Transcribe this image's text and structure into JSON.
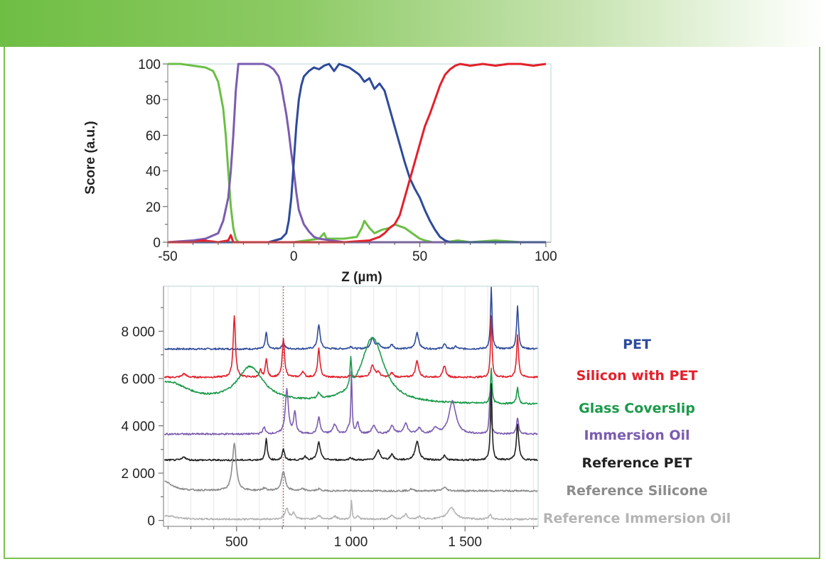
{
  "colors": {
    "header_green": "#6fbe44",
    "frame_green": "#7cc24e",
    "pet": "#2e4b9b",
    "silicon": "#e3202b",
    "glass": "#1a9a4a",
    "glass_top": "#6cbf45",
    "oil": "#7b5cb0",
    "ref_pet": "#222222",
    "ref_silicone": "#8c8c8c",
    "ref_oil": "#b4b4b4",
    "marker": "#c0392b"
  },
  "chart_data": [
    {
      "type": "line",
      "title": "",
      "xlabel": "Z (µm)",
      "ylabel": "Score (a.u.)",
      "xlim": [
        -50,
        102
      ],
      "ylim": [
        0,
        100
      ],
      "xticks": [
        -50,
        0,
        50,
        100
      ],
      "xtick_labels": [
        "-50",
        "0",
        "50",
        "100"
      ],
      "yticks": [
        0,
        20,
        40,
        60,
        80,
        100
      ],
      "ytick_labels": [
        "0",
        "20",
        "40",
        "60",
        "80",
        "100"
      ],
      "series": [
        {
          "name": "Glass Coverslip",
          "color_key": "glass_top",
          "x": [
            -50,
            -45,
            -40,
            -35,
            -32,
            -30,
            -28,
            -27,
            -26,
            -25,
            -24,
            -23,
            -22,
            -21,
            -20,
            -10,
            0,
            5,
            10,
            12,
            13,
            15,
            20,
            25,
            27,
            28,
            29,
            30,
            32,
            35,
            38,
            40,
            42,
            44,
            46,
            48,
            50,
            52,
            55,
            60,
            65,
            70,
            80,
            90,
            100
          ],
          "y": [
            100,
            100,
            99,
            98,
            96,
            90,
            75,
            60,
            40,
            20,
            8,
            2,
            0,
            0,
            0,
            0,
            0,
            1,
            2,
            5,
            2,
            2,
            2,
            3,
            8,
            12,
            10,
            8,
            5,
            7,
            8,
            10,
            9,
            8,
            6,
            4,
            2,
            1,
            0,
            0,
            1,
            0,
            1,
            0,
            0
          ]
        },
        {
          "name": "Immersion Oil",
          "color_key": "oil",
          "x": [
            -50,
            -40,
            -35,
            -30,
            -28,
            -26,
            -25,
            -24,
            -23,
            -22,
            -21,
            -20,
            -15,
            -12,
            -10,
            -8,
            -6,
            -5,
            -4,
            -3,
            -2,
            -1,
            0,
            1,
            2,
            4,
            6,
            8,
            10,
            15,
            20,
            30,
            40,
            50,
            60,
            70,
            80,
            90,
            100
          ],
          "y": [
            0,
            1,
            2,
            5,
            12,
            25,
            40,
            60,
            85,
            100,
            100,
            100,
            100,
            100,
            99,
            97,
            93,
            88,
            80,
            72,
            62,
            50,
            40,
            28,
            18,
            10,
            6,
            3,
            2,
            1,
            0,
            0,
            0,
            0,
            0,
            0,
            0,
            0,
            0
          ]
        },
        {
          "name": "PET",
          "color_key": "pet",
          "x": [
            -50,
            -20,
            -10,
            -5,
            -3,
            -2,
            -1,
            0,
            1,
            2,
            3,
            4,
            6,
            8,
            10,
            12,
            14,
            16,
            18,
            20,
            22,
            24,
            26,
            28,
            30,
            32,
            34,
            36,
            38,
            40,
            42,
            44,
            46,
            48,
            50,
            52,
            54,
            56,
            58,
            60,
            62,
            65,
            70,
            80,
            90,
            100
          ],
          "y": [
            0,
            0,
            0,
            2,
            5,
            12,
            25,
            45,
            65,
            80,
            88,
            93,
            96,
            98,
            97,
            99,
            100,
            96,
            100,
            99,
            98,
            96,
            94,
            90,
            92,
            86,
            89,
            85,
            75,
            65,
            55,
            45,
            36,
            30,
            25,
            18,
            12,
            7,
            3,
            1,
            0,
            0,
            0,
            0,
            0,
            0
          ]
        },
        {
          "name": "Silicon with PET",
          "color_key": "silicon",
          "x": [
            -50,
            -40,
            -36,
            -30,
            -26,
            -25,
            -24,
            -20,
            0,
            20,
            30,
            34,
            36,
            38,
            40,
            42,
            44,
            46,
            48,
            50,
            52,
            54,
            56,
            58,
            60,
            62,
            64,
            66,
            70,
            75,
            80,
            85,
            90,
            95,
            100
          ],
          "y": [
            0,
            0,
            1,
            0,
            1,
            4,
            0,
            0,
            0,
            0,
            1,
            3,
            5,
            8,
            10,
            15,
            25,
            35,
            45,
            55,
            65,
            72,
            80,
            88,
            94,
            97,
            99,
            100,
            99,
            100,
            99,
            100,
            100,
            99,
            100
          ]
        }
      ]
    },
    {
      "type": "line",
      "title": "",
      "xlabel": "",
      "ylabel": "",
      "xlim": [
        180,
        1820
      ],
      "ylim": [
        -250,
        9900
      ],
      "xticks": [
        500,
        1000,
        1500
      ],
      "xtick_labels": [
        "500",
        "1 000",
        "1 500"
      ],
      "yticks": [
        0,
        2000,
        4000,
        6000,
        8000
      ],
      "ytick_labels": [
        "0",
        "2 000",
        "4 000",
        "6 000",
        "8 000"
      ],
      "marker_line_x": 705,
      "series": [
        {
          "name": "PET",
          "color_key": "pet",
          "baseline": 7250,
          "peaks": [
            [
              630,
              700,
              5
            ],
            [
              705,
              250,
              7
            ],
            [
              860,
              1000,
              7
            ],
            [
              1000,
              100,
              8
            ],
            [
              1095,
              450,
              10
            ],
            [
              1120,
              200,
              8
            ],
            [
              1180,
              180,
              8
            ],
            [
              1290,
              700,
              8
            ],
            [
              1410,
              200,
              7
            ],
            [
              1460,
              100,
              7
            ],
            [
              1615,
              2600,
              4
            ],
            [
              1730,
              1800,
              5
            ]
          ]
        },
        {
          "name": "Silicon with PET",
          "color_key": "silicon",
          "baseline": 6050,
          "peaks": [
            [
              270,
              150,
              10
            ],
            [
              490,
              2600,
              6
            ],
            [
              630,
              800,
              5
            ],
            [
              605,
              300,
              5
            ],
            [
              705,
              1600,
              6
            ],
            [
              790,
              250,
              7
            ],
            [
              860,
              1200,
              6
            ],
            [
              1000,
              100,
              8
            ],
            [
              1095,
              500,
              10
            ],
            [
              1120,
              200,
              8
            ],
            [
              1180,
              180,
              8
            ],
            [
              1290,
              700,
              8
            ],
            [
              1410,
              500,
              7
            ],
            [
              1615,
              2600,
              4
            ],
            [
              1730,
              1800,
              5
            ]
          ]
        },
        {
          "name": "Glass Coverslip",
          "color_key": "glass",
          "baseline": 4900,
          "peaks": [
            [
              200,
              900,
              110
            ],
            [
              560,
              1500,
              70
            ],
            [
              1095,
              2800,
              60
            ],
            [
              1000,
              1200,
              4
            ],
            [
              860,
              250,
              8
            ],
            [
              1615,
              1500,
              4
            ],
            [
              1730,
              700,
              5
            ]
          ]
        },
        {
          "name": "Immersion Oil",
          "color_key": "oil",
          "baseline": 3650,
          "peaks": [
            [
              620,
              300,
              6
            ],
            [
              720,
              1900,
              8
            ],
            [
              755,
              900,
              6
            ],
            [
              860,
              700,
              7
            ],
            [
              930,
              400,
              10
            ],
            [
              990,
              200,
              8
            ],
            [
              1003,
              2600,
              3
            ],
            [
              1030,
              500,
              6
            ],
            [
              1100,
              350,
              10
            ],
            [
              1180,
              350,
              10
            ],
            [
              1240,
              450,
              10
            ],
            [
              1300,
              250,
              10
            ],
            [
              1370,
              250,
              10
            ],
            [
              1445,
              1400,
              18
            ],
            [
              1610,
              1800,
              4
            ],
            [
              1730,
              700,
              5
            ]
          ]
        },
        {
          "name": "Reference PET",
          "color_key": "ref_pet",
          "baseline": 2550,
          "peaks": [
            [
              270,
              150,
              8
            ],
            [
              630,
              900,
              5
            ],
            [
              705,
              450,
              6
            ],
            [
              800,
              150,
              8
            ],
            [
              860,
              750,
              8
            ],
            [
              1000,
              100,
              8
            ],
            [
              1120,
              400,
              10
            ],
            [
              1180,
              250,
              8
            ],
            [
              1290,
              800,
              10
            ],
            [
              1410,
              180,
              7
            ],
            [
              1615,
              3200,
              4
            ],
            [
              1730,
              1500,
              6
            ]
          ]
        },
        {
          "name": "Reference Silicone",
          "color_key": "ref_silicone",
          "baseline": 1250,
          "peaks": [
            [
              185,
              400,
              40
            ],
            [
              490,
              2000,
              10
            ],
            [
              620,
              100,
              10
            ],
            [
              705,
              800,
              10
            ],
            [
              790,
              80,
              8
            ],
            [
              860,
              80,
              8
            ],
            [
              1265,
              80,
              8
            ],
            [
              1410,
              150,
              10
            ]
          ]
        },
        {
          "name": "Reference Immersion Oil",
          "color_key": "ref_oil",
          "baseline": 50,
          "peaks": [
            [
              200,
              150,
              40
            ],
            [
              720,
              450,
              10
            ],
            [
              750,
              250,
              8
            ],
            [
              860,
              150,
              10
            ],
            [
              930,
              120,
              10
            ],
            [
              1003,
              800,
              3
            ],
            [
              1030,
              150,
              6
            ],
            [
              1180,
              150,
              10
            ],
            [
              1240,
              200,
              10
            ],
            [
              1300,
              100,
              10
            ],
            [
              1440,
              500,
              20
            ],
            [
              1610,
              200,
              6
            ]
          ]
        }
      ]
    }
  ],
  "legend": {
    "pet": "PET",
    "silicon": "Silicon with PET",
    "glass": "Glass Coverslip",
    "oil": "Immersion Oil",
    "ref_pet": "Reference PET",
    "ref_silicone": "Reference Silicone",
    "ref_oil": "Reference Immersion Oil"
  }
}
